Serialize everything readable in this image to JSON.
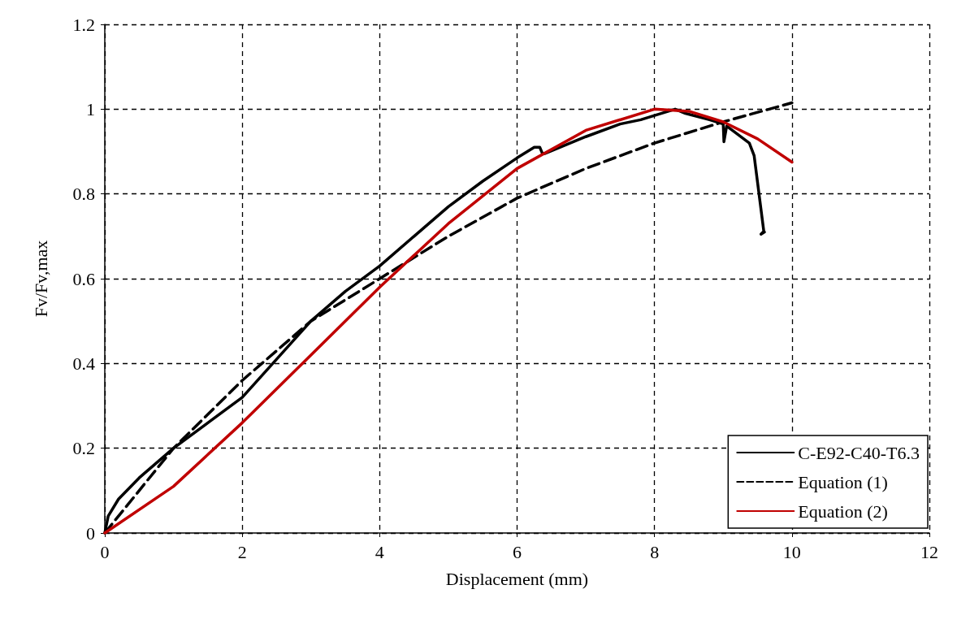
{
  "chart_data": {
    "type": "line",
    "xlabel": "Displacement (mm)",
    "ylabel": "Fv/Fv,max",
    "xlim": [
      0,
      12
    ],
    "xticks": [
      0,
      2,
      4,
      6,
      8,
      10,
      12
    ],
    "ylim": [
      0,
      1.2
    ],
    "yticks": [
      0,
      0.2,
      0.4,
      0.6,
      0.8,
      1,
      1.2
    ],
    "grid": true,
    "legend": "bottom right",
    "marker": "none",
    "series": [
      {
        "name": "C-E92-C40-T6.3",
        "color": "#000000",
        "line_style": "solid",
        "x": [
          0,
          0.05,
          0.2,
          0.5,
          1,
          1.5,
          2,
          2.5,
          3,
          3.5,
          4,
          4.5,
          5,
          5.5,
          6,
          6.25,
          6.33,
          6.37,
          6.4,
          7,
          7.5,
          7.8,
          8,
          8.3,
          8.45,
          8.8,
          9.0,
          9.01,
          9.05,
          9.38,
          9.45,
          9.59,
          9.55,
          9.6
        ],
        "values": [
          0,
          0.04,
          0.08,
          0.13,
          0.2,
          0.26,
          0.32,
          0.41,
          0.5,
          0.57,
          0.63,
          0.7,
          0.77,
          0.83,
          0.885,
          0.91,
          0.91,
          0.895,
          0.895,
          0.935,
          0.965,
          0.975,
          0.985,
          1.0,
          0.99,
          0.975,
          0.965,
          0.923,
          0.96,
          0.92,
          0.89,
          0.712,
          0.705,
          0.71
        ]
      },
      {
        "name": "Equation (1)",
        "color": "#000000",
        "line_style": "dashed",
        "x": [
          0,
          0.5,
          1,
          2,
          3,
          4,
          5,
          6,
          7,
          8,
          9,
          10
        ],
        "values": [
          0,
          0.1,
          0.2,
          0.36,
          0.5,
          0.6,
          0.7,
          0.79,
          0.86,
          0.92,
          0.97,
          1.015
        ]
      },
      {
        "name": "Equation (2)",
        "color": "#c00000",
        "line_style": "solid",
        "x": [
          0,
          1,
          2,
          3,
          4,
          5,
          6,
          7,
          8,
          8.5,
          9,
          9.5,
          10
        ],
        "values": [
          0,
          0.11,
          0.26,
          0.42,
          0.58,
          0.73,
          0.86,
          0.95,
          1.0,
          0.995,
          0.97,
          0.93,
          0.875
        ]
      }
    ]
  }
}
